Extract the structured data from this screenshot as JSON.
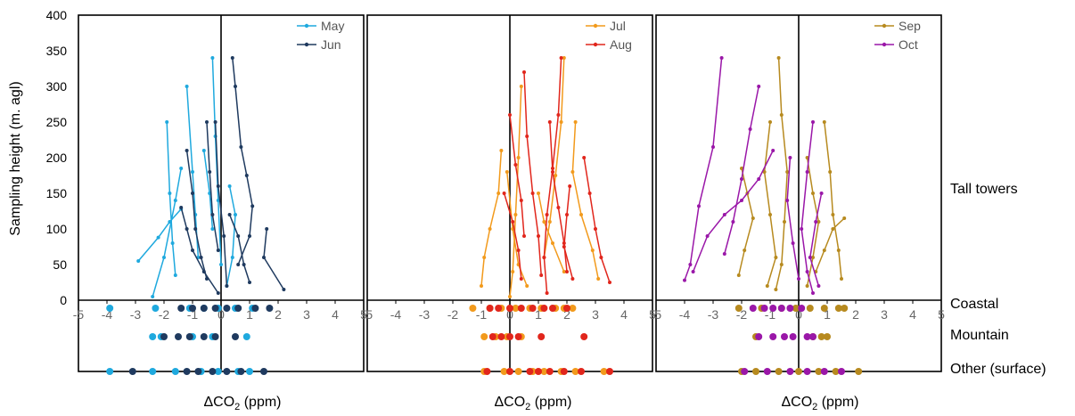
{
  "figure": {
    "ylabel": "Sampling height (m. agl)",
    "xlabel": "ΔCO",
    "xlabel_sub": "2",
    "xlabel_unit": " (ppm)",
    "row_labels": [
      "Tall towers",
      "Coastal",
      "Mountain",
      "Other (surface)"
    ]
  },
  "chart_data": [
    {
      "type": "scatter",
      "panel": 1,
      "xlim": [
        -5,
        5
      ],
      "ylim": [
        0,
        400
      ],
      "yticks": [
        0,
        50,
        100,
        150,
        200,
        250,
        300,
        350,
        400
      ],
      "xticks": [
        -5,
        -4,
        -3,
        -2,
        -1,
        0,
        1,
        2,
        3,
        4,
        5
      ],
      "legend_position": "top-right",
      "series": [
        {
          "name": "May",
          "color": "#1fa9de",
          "profiles": [
            [
              [
                -2.9,
                55
              ],
              [
                -2.2,
                88
              ],
              [
                -1.8,
                110
              ],
              [
                -1.4,
                128
              ]
            ],
            [
              [
                -1.9,
                250
              ],
              [
                -1.8,
                150
              ],
              [
                -1.7,
                80
              ],
              [
                -1.6,
                35
              ]
            ],
            [
              [
                -1.2,
                300
              ],
              [
                -1.0,
                180
              ],
              [
                -0.9,
                120
              ],
              [
                -0.8,
                60
              ]
            ],
            [
              [
                -0.3,
                340
              ],
              [
                -0.2,
                230
              ],
              [
                -0.1,
                140
              ],
              [
                0.0,
                50
              ]
            ],
            [
              [
                -2.4,
                5
              ],
              [
                -2.0,
                60
              ],
              [
                -1.6,
                140
              ],
              [
                -1.4,
                185
              ]
            ],
            [
              [
                0.3,
                160
              ],
              [
                0.5,
                120
              ],
              [
                0.4,
                60
              ],
              [
                0.2,
                20
              ]
            ],
            [
              [
                -0.6,
                210
              ],
              [
                -0.4,
                150
              ],
              [
                -0.3,
                100
              ]
            ]
          ],
          "coastal_x": [
            -3.9,
            -2.3,
            -1.1,
            -0.6,
            -0.1,
            0.5,
            1.1
          ],
          "mountain_x": [
            -2.4,
            -2.1,
            -1.0,
            -0.3,
            0.9
          ],
          "other_x": [
            -3.9,
            -2.4,
            -1.6,
            -0.7,
            -0.1,
            0.6,
            1.0
          ]
        },
        {
          "name": "Jun",
          "color": "#1f3a5f",
          "profiles": [
            [
              [
                0.4,
                340
              ],
              [
                0.5,
                300
              ],
              [
                0.7,
                215
              ],
              [
                0.9,
                175
              ],
              [
                1.1,
                132
              ],
              [
                1.0,
                90
              ],
              [
                0.6,
                50
              ]
            ],
            [
              [
                -1.2,
                210
              ],
              [
                -1.0,
                150
              ],
              [
                -0.9,
                100
              ],
              [
                -0.7,
                60
              ],
              [
                -0.5,
                30
              ]
            ],
            [
              [
                -0.5,
                250
              ],
              [
                -0.4,
                180
              ],
              [
                -0.3,
                120
              ],
              [
                -0.1,
                70
              ]
            ],
            [
              [
                1.6,
                100
              ],
              [
                1.5,
                60
              ],
              [
                2.2,
                15
              ]
            ],
            [
              [
                -1.4,
                130
              ],
              [
                -1.2,
                100
              ],
              [
                -1.0,
                70
              ],
              [
                -0.6,
                40
              ],
              [
                -0.1,
                10
              ]
            ],
            [
              [
                -0.2,
                250
              ],
              [
                -0.1,
                160
              ],
              [
                0.1,
                90
              ],
              [
                0.2,
                20
              ]
            ],
            [
              [
                0.3,
                120
              ],
              [
                0.6,
                90
              ],
              [
                0.8,
                50
              ],
              [
                1.0,
                25
              ]
            ]
          ],
          "coastal_x": [
            -1.4,
            -1.0,
            -0.6,
            -0.2,
            0.2,
            0.6,
            1.2,
            1.7
          ],
          "mountain_x": [
            -2.0,
            -1.5,
            -1.1,
            -0.6,
            -0.2,
            0.5
          ],
          "other_x": [
            -3.1,
            -1.2,
            -0.8,
            -0.3,
            0.2,
            0.7,
            1.5
          ]
        }
      ]
    },
    {
      "type": "scatter",
      "panel": 2,
      "xlim": [
        -5,
        5
      ],
      "ylim": [
        0,
        400
      ],
      "xticks": [
        -5,
        -4,
        -3,
        -2,
        -1,
        0,
        1,
        2,
        3,
        4,
        5
      ],
      "legend_position": "top-right",
      "series": [
        {
          "name": "Jul",
          "color": "#f29a1c",
          "profiles": [
            [
              [
                1.9,
                340
              ],
              [
                1.8,
                250
              ],
              [
                1.6,
                175
              ],
              [
                1.4,
                110
              ],
              [
                1.2,
                60
              ]
            ],
            [
              [
                0.4,
                300
              ],
              [
                0.3,
                200
              ],
              [
                0.2,
                120
              ],
              [
                0.1,
                40
              ],
              [
                0.0,
                5
              ]
            ],
            [
              [
                2.3,
                250
              ],
              [
                2.2,
                180
              ],
              [
                2.5,
                120
              ],
              [
                2.9,
                70
              ],
              [
                3.1,
                30
              ]
            ],
            [
              [
                -0.3,
                210
              ],
              [
                -0.4,
                150
              ],
              [
                -0.7,
                100
              ],
              [
                -0.9,
                60
              ],
              [
                -1.0,
                20
              ]
            ],
            [
              [
                1.0,
                150
              ],
              [
                1.2,
                110
              ],
              [
                1.5,
                80
              ],
              [
                1.9,
                40
              ]
            ],
            [
              [
                -0.1,
                180
              ],
              [
                0.1,
                100
              ],
              [
                0.3,
                50
              ],
              [
                0.6,
                20
              ]
            ]
          ],
          "coastal_x": [
            -1.3,
            -0.7,
            -0.3,
            0.2,
            0.7,
            1.1,
            1.6,
            1.9,
            2.2
          ],
          "mountain_x": [
            -0.9,
            -0.5,
            -0.1,
            0.4
          ],
          "other_x": [
            -0.9,
            -0.2,
            0.3,
            0.8,
            1.2,
            1.8,
            2.3,
            3.3
          ]
        },
        {
          "name": "Aug",
          "color": "#e1261c",
          "profiles": [
            [
              [
                1.8,
                340
              ],
              [
                1.7,
                260
              ],
              [
                1.5,
                185
              ],
              [
                1.3,
                120
              ],
              [
                1.2,
                60
              ],
              [
                1.3,
                10
              ]
            ],
            [
              [
                0.5,
                320
              ],
              [
                0.6,
                230
              ],
              [
                0.8,
                150
              ],
              [
                1.0,
                90
              ],
              [
                1.1,
                35
              ]
            ],
            [
              [
                2.6,
                200
              ],
              [
                2.8,
                150
              ],
              [
                3.0,
                100
              ],
              [
                3.2,
                60
              ],
              [
                3.5,
                25
              ]
            ],
            [
              [
                -0.2,
                150
              ],
              [
                0.1,
                110
              ],
              [
                0.3,
                70
              ],
              [
                0.4,
                30
              ]
            ],
            [
              [
                1.4,
                250
              ],
              [
                1.5,
                180
              ],
              [
                1.7,
                130
              ],
              [
                1.9,
                80
              ],
              [
                2.0,
                40
              ]
            ],
            [
              [
                0.0,
                260
              ],
              [
                0.2,
                190
              ],
              [
                0.4,
                140
              ],
              [
                0.5,
                90
              ]
            ],
            [
              [
                2.1,
                160
              ],
              [
                2.0,
                120
              ],
              [
                1.9,
                75
              ],
              [
                2.2,
                30
              ]
            ]
          ],
          "coastal_x": [
            -0.7,
            -0.4,
            0.0,
            0.4,
            0.8,
            1.2,
            1.5,
            2.0
          ],
          "mountain_x": [
            -0.6,
            -0.3,
            0.0,
            0.3,
            1.1,
            2.6
          ],
          "other_x": [
            -0.8,
            0.0,
            0.7,
            1.0,
            1.4,
            1.9,
            2.5,
            3.5
          ]
        }
      ]
    },
    {
      "type": "scatter",
      "panel": 3,
      "xlim": [
        -5,
        5
      ],
      "ylim": [
        0,
        400
      ],
      "xticks": [
        -5,
        -4,
        -3,
        -2,
        -1,
        0,
        1,
        2,
        3,
        4,
        5
      ],
      "legend_position": "top-right",
      "series": [
        {
          "name": "Sep",
          "color": "#b78a1f",
          "profiles": [
            [
              [
                -0.7,
                340
              ],
              [
                -0.6,
                260
              ],
              [
                -0.4,
                180
              ],
              [
                -0.5,
                110
              ],
              [
                -0.6,
                50
              ],
              [
                -0.8,
                15
              ]
            ],
            [
              [
                0.9,
                250
              ],
              [
                1.1,
                180
              ],
              [
                1.2,
                120
              ],
              [
                1.4,
                70
              ],
              [
                1.5,
                30
              ]
            ],
            [
              [
                -2.0,
                185
              ],
              [
                -1.8,
                150
              ],
              [
                -1.6,
                115
              ],
              [
                -1.9,
                70
              ],
              [
                -2.1,
                35
              ]
            ],
            [
              [
                -1.0,
                250
              ],
              [
                -1.2,
                180
              ],
              [
                -1.0,
                120
              ],
              [
                -0.8,
                60
              ],
              [
                -1.1,
                20
              ]
            ],
            [
              [
                0.3,
                200
              ],
              [
                0.5,
                150
              ],
              [
                0.7,
                110
              ],
              [
                0.5,
                60
              ],
              [
                0.3,
                20
              ]
            ],
            [
              [
                1.6,
                115
              ],
              [
                1.2,
                100
              ],
              [
                0.9,
                70
              ],
              [
                0.6,
                40
              ]
            ]
          ],
          "coastal_x": [
            -2.1,
            -1.3,
            -0.6,
            -0.1,
            0.4,
            0.9,
            1.4,
            1.6
          ],
          "mountain_x": [
            -1.5,
            0.5,
            0.8,
            1.0
          ],
          "other_x": [
            -2.0,
            -1.5,
            -0.7,
            0.0,
            0.7,
            1.3,
            2.1
          ]
        },
        {
          "name": "Oct",
          "color": "#9a17a8",
          "profiles": [
            [
              [
                -2.7,
                340
              ],
              [
                -3.0,
                215
              ],
              [
                -3.5,
                132
              ],
              [
                -3.8,
                50
              ],
              [
                -4.0,
                28
              ]
            ],
            [
              [
                -1.4,
                300
              ],
              [
                -1.7,
                240
              ],
              [
                -2.0,
                170
              ],
              [
                -2.3,
                110
              ],
              [
                -2.6,
                65
              ]
            ],
            [
              [
                -0.9,
                210
              ],
              [
                -1.4,
                170
              ],
              [
                -2.0,
                140
              ],
              [
                -2.6,
                120
              ],
              [
                -3.2,
                90
              ],
              [
                -3.7,
                40
              ]
            ],
            [
              [
                0.5,
                250
              ],
              [
                0.3,
                180
              ],
              [
                0.1,
                100
              ],
              [
                0.3,
                40
              ],
              [
                0.5,
                10
              ]
            ],
            [
              [
                -0.3,
                200
              ],
              [
                -0.4,
                140
              ],
              [
                -0.2,
                80
              ],
              [
                0.0,
                30
              ]
            ],
            [
              [
                0.8,
                150
              ],
              [
                0.6,
                110
              ],
              [
                0.4,
                60
              ],
              [
                0.7,
                20
              ]
            ]
          ],
          "coastal_x": [
            -1.6,
            -1.2,
            -0.9,
            -0.6,
            -0.3,
            0.1
          ],
          "mountain_x": [
            -1.4,
            -0.9,
            -0.5,
            -0.2,
            0.3,
            0.5
          ],
          "other_x": [
            -1.9,
            -1.1,
            -0.3,
            0.3,
            0.9,
            1.5
          ]
        }
      ]
    }
  ]
}
